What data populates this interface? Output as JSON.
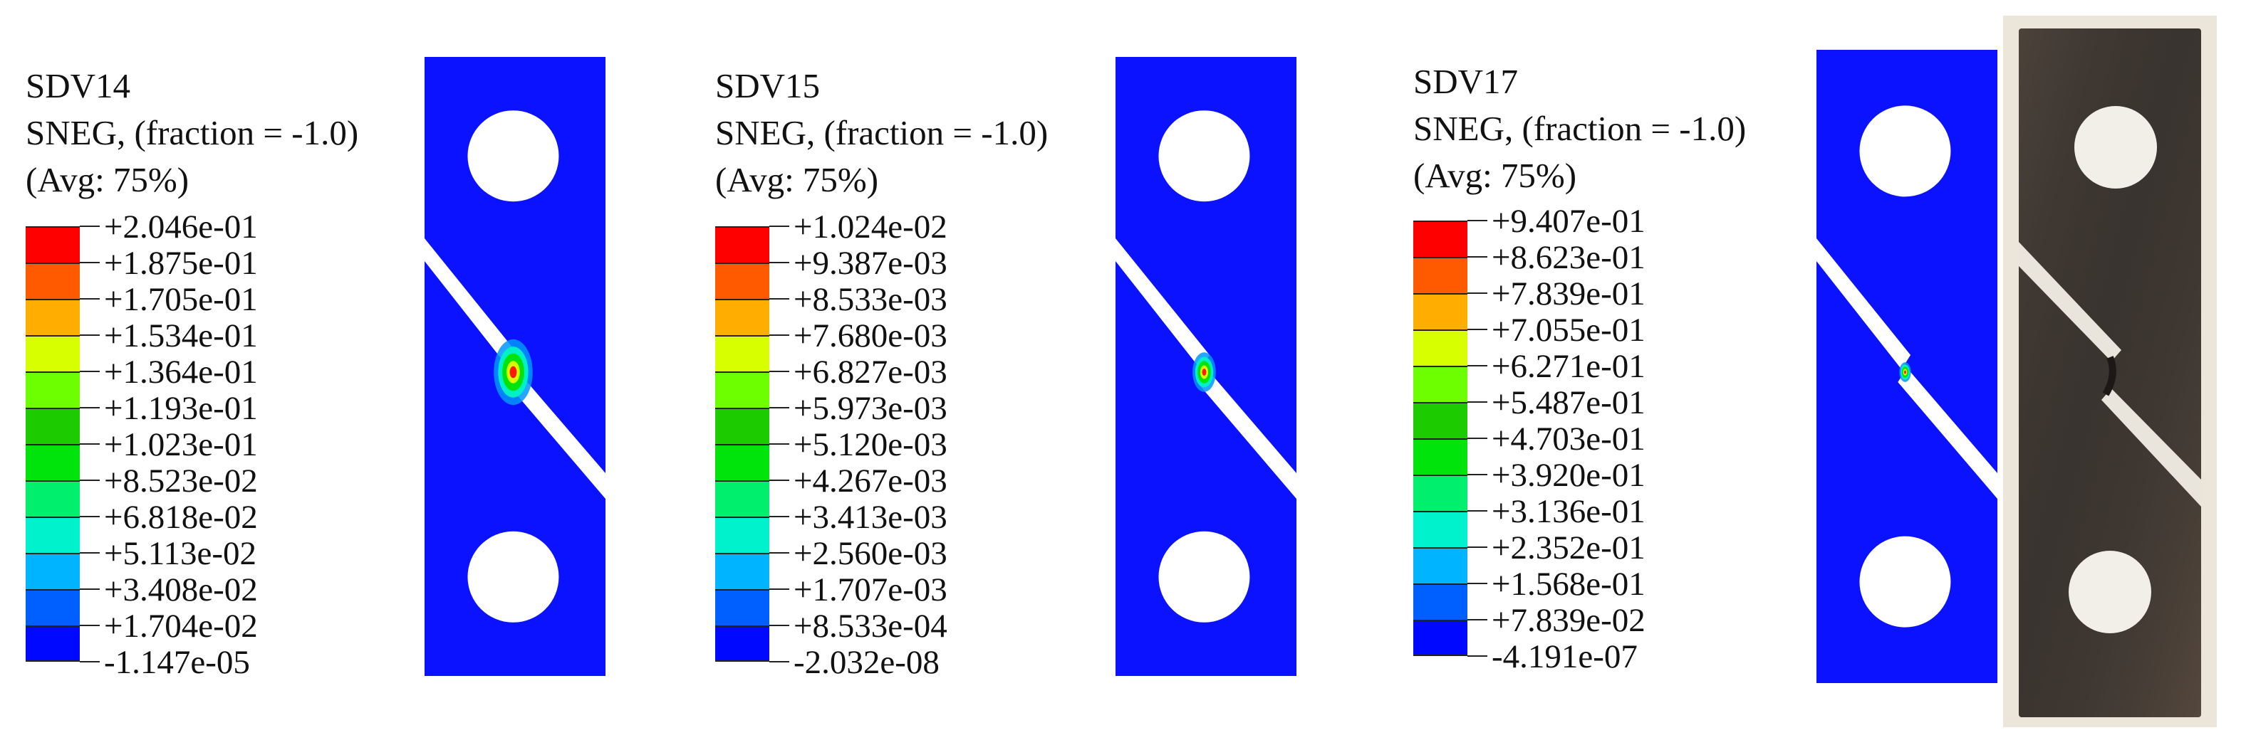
{
  "palette": [
    "#ff0000",
    "#ff5a00",
    "#ffae00",
    "#d8ff00",
    "#6dff00",
    "#1ccc00",
    "#00e40c",
    "#00f06d",
    "#00f2cc",
    "#00b4ff",
    "#0060ff",
    "#0008ff"
  ],
  "colors": {
    "specimen": "#0a12ff",
    "gap": "#ffffff",
    "peak": "#ff1a00",
    "photo_metal": "#3a3530",
    "photo_frame": "#e8e2d8"
  },
  "panels": [
    {
      "variable": "SDV14",
      "line2": "SNEG, (fraction = -1.0)",
      "line3": "(Avg: 75%)",
      "values": [
        "+2.046e-01",
        "+1.875e-01",
        "+1.705e-01",
        "+1.534e-01",
        "+1.364e-01",
        "+1.193e-01",
        "+1.023e-01",
        "+8.523e-02",
        "+6.818e-02",
        "+5.113e-02",
        "+3.408e-02",
        "+1.704e-02",
        "-1.147e-05"
      ]
    },
    {
      "variable": "SDV15",
      "line2": "SNEG, (fraction = -1.0)",
      "line3": "(Avg: 75%)",
      "values": [
        "+1.024e-02",
        "+9.387e-03",
        "+8.533e-03",
        "+7.680e-03",
        "+6.827e-03",
        "+5.973e-03",
        "+5.120e-03",
        "+4.267e-03",
        "+3.413e-03",
        "+2.560e-03",
        "+1.707e-03",
        "+8.533e-04",
        "-2.032e-08"
      ]
    },
    {
      "variable": "SDV17",
      "line2": "SNEG, (fraction = -1.0)",
      "line3": "(Avg: 75%)",
      "values": [
        "+9.407e-01",
        "+8.623e-01",
        "+7.839e-01",
        "+7.055e-01",
        "+6.271e-01",
        "+5.487e-01",
        "+4.703e-01",
        "+3.920e-01",
        "+3.136e-01",
        "+2.352e-01",
        "+1.568e-01",
        "+7.839e-02",
        "-4.191e-07"
      ]
    }
  ]
}
